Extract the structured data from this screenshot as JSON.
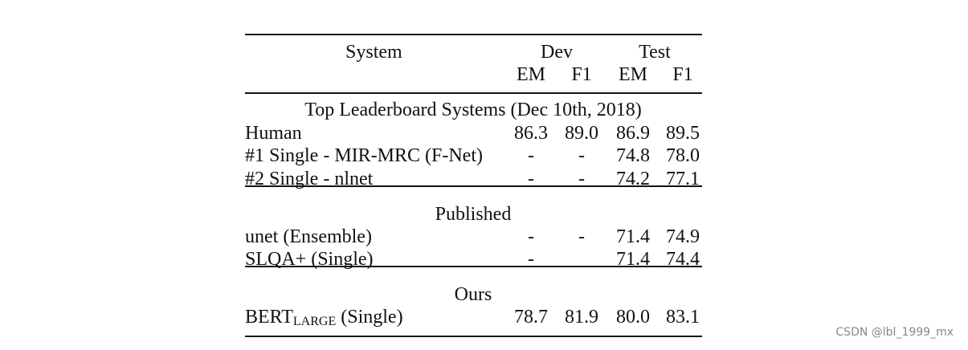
{
  "table": {
    "header": {
      "system": "System",
      "dev": "Dev",
      "test": "Test",
      "subcolumns": [
        "EM",
        "F1",
        "EM",
        "F1"
      ]
    },
    "sections": [
      {
        "title": "Top Leaderboard Systems (Dec 10th, 2018)",
        "rows": [
          {
            "system": {
              "name": "Human"
            },
            "dev_em": "86.3",
            "dev_f1": "89.0",
            "test_em": "86.9",
            "test_f1": "89.5"
          },
          {
            "system": {
              "name": "#1 Single - MIR-MRC (F-Net)"
            },
            "dev_em": "-",
            "dev_f1": "-",
            "test_em": "74.8",
            "test_f1": "78.0"
          },
          {
            "system": {
              "name": "#2 Single - nlnet"
            },
            "dev_em": "-",
            "dev_f1": "-",
            "test_em": "74.2",
            "test_f1": "77.1"
          }
        ]
      },
      {
        "title": "Published",
        "rows": [
          {
            "system": {
              "name": "unet (Ensemble)"
            },
            "dev_em": "-",
            "dev_f1": "-",
            "test_em": "71.4",
            "test_f1": "74.9"
          },
          {
            "system": {
              "name": "SLQA+ (Single)"
            },
            "dev_em": "-",
            "test_em": "71.4",
            "test_f1": "74.4"
          }
        ]
      },
      {
        "title": "Ours",
        "rows": [
          {
            "system": {
              "name": "BERT",
              "subscript": "LARGE",
              "suffix": "(Single)"
            },
            "dev_em": "78.7",
            "dev_f1": "81.9",
            "test_em": "80.0",
            "test_f1": "83.1"
          }
        ]
      }
    ]
  },
  "watermark": "CSDN @lbl_1999_mx"
}
